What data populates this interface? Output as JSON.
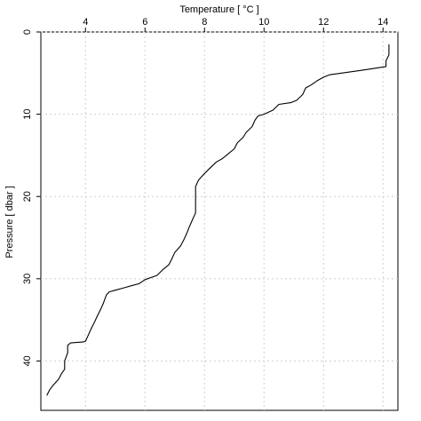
{
  "chart_data": {
    "type": "line",
    "xlabel": "Temperature [ °C ]",
    "ylabel": "Pressure [ dbar ]",
    "xlim": [
      2.5,
      14.5
    ],
    "ylim": [
      0,
      46
    ],
    "y_inverted": true,
    "x_axis_position": "top",
    "xticks": [
      4,
      6,
      8,
      10,
      12,
      14
    ],
    "yticks": [
      0,
      10,
      20,
      30,
      40
    ],
    "grid": true,
    "series": [
      {
        "color": "#000000",
        "points": [
          [
            14.2,
            1.5
          ],
          [
            14.2,
            2.8
          ],
          [
            14.1,
            3.5
          ],
          [
            14.1,
            4.2
          ],
          [
            13.4,
            4.6
          ],
          [
            12.2,
            5.2
          ],
          [
            12.0,
            5.5
          ],
          [
            11.8,
            5.9
          ],
          [
            11.6,
            6.4
          ],
          [
            11.4,
            6.8
          ],
          [
            11.3,
            7.6
          ],
          [
            11.1,
            8.3
          ],
          [
            10.9,
            8.6
          ],
          [
            10.5,
            8.8
          ],
          [
            10.3,
            9.5
          ],
          [
            10.0,
            10.0
          ],
          [
            9.8,
            10.2
          ],
          [
            9.7,
            10.7
          ],
          [
            9.6,
            11.5
          ],
          [
            9.4,
            12.2
          ],
          [
            9.3,
            12.8
          ],
          [
            9.1,
            13.5
          ],
          [
            9.0,
            14.2
          ],
          [
            8.8,
            14.8
          ],
          [
            8.6,
            15.4
          ],
          [
            8.4,
            15.8
          ],
          [
            8.2,
            16.5
          ],
          [
            8.0,
            17.2
          ],
          [
            7.8,
            18.0
          ],
          [
            7.7,
            18.8
          ],
          [
            7.7,
            20.0
          ],
          [
            7.7,
            21.0
          ],
          [
            7.7,
            22.0
          ],
          [
            7.6,
            22.8
          ],
          [
            7.5,
            23.6
          ],
          [
            7.4,
            24.5
          ],
          [
            7.3,
            25.3
          ],
          [
            7.2,
            26.0
          ],
          [
            7.0,
            26.8
          ],
          [
            6.9,
            27.6
          ],
          [
            6.8,
            28.3
          ],
          [
            6.6,
            28.9
          ],
          [
            6.4,
            29.6
          ],
          [
            6.0,
            30.1
          ],
          [
            5.8,
            30.6
          ],
          [
            5.6,
            30.8
          ],
          [
            5.3,
            31.1
          ],
          [
            4.8,
            31.6
          ],
          [
            4.7,
            32.0
          ],
          [
            4.6,
            33.0
          ],
          [
            4.5,
            33.8
          ],
          [
            4.4,
            34.5
          ],
          [
            4.3,
            35.3
          ],
          [
            4.2,
            36.0
          ],
          [
            4.1,
            36.8
          ],
          [
            4.0,
            37.6
          ],
          [
            3.9,
            37.7
          ],
          [
            3.5,
            37.8
          ],
          [
            3.4,
            38.1
          ],
          [
            3.4,
            39.0
          ],
          [
            3.3,
            40.0
          ],
          [
            3.3,
            41.0
          ],
          [
            3.2,
            41.5
          ],
          [
            3.1,
            42.2
          ],
          [
            2.9,
            43.0
          ],
          [
            2.8,
            43.5
          ],
          [
            2.7,
            44.2
          ]
        ]
      }
    ]
  }
}
